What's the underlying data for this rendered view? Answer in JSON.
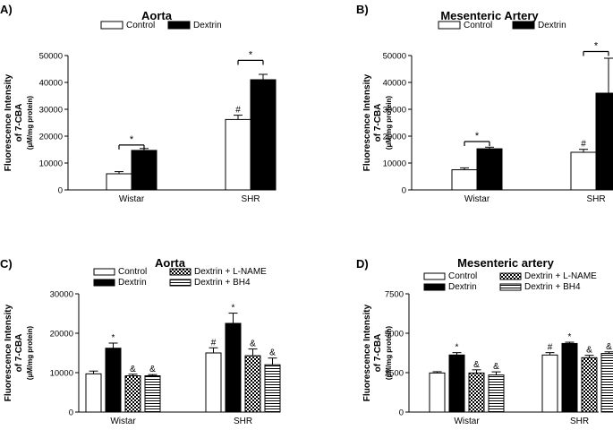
{
  "chart_data": [
    {
      "panel": "A)",
      "type": "bar",
      "title": "Aorta",
      "ylabel": [
        "Fluorescence Intensity",
        "of 7-CBA",
        "(µM/mg protein)"
      ],
      "categories": [
        "Wistar",
        "SHR"
      ],
      "ylim": [
        0,
        50000
      ],
      "yticks": [
        0,
        10000,
        20000,
        30000,
        40000,
        50000
      ],
      "series": [
        {
          "name": "Control",
          "fill": "white",
          "values": [
            6000,
            26200
          ],
          "errors": [
            800,
            1600
          ],
          "labels": [
            "",
            "#"
          ]
        },
        {
          "name": "Dextrin",
          "fill": "black",
          "values": [
            14700,
            41000
          ],
          "errors": [
            700,
            2000
          ],
          "labels": [
            "",
            ""
          ]
        }
      ],
      "brackets": [
        {
          "category": 0,
          "y": 16700,
          "label": "*"
        },
        {
          "category": 1,
          "y": 48200,
          "label": "*"
        }
      ]
    },
    {
      "panel": "B)",
      "type": "bar",
      "title": "Mesenteric Artery",
      "ylabel": [
        "Fluorescence Intensity",
        "of 7-CBA",
        "(µM/mg protein)"
      ],
      "categories": [
        "Wistar",
        "SHR"
      ],
      "ylim": [
        0,
        50000
      ],
      "yticks": [
        0,
        10000,
        20000,
        30000,
        40000,
        50000
      ],
      "series": [
        {
          "name": "Control",
          "fill": "white",
          "values": [
            7500,
            14000
          ],
          "errors": [
            700,
            1100
          ],
          "labels": [
            "",
            "#"
          ]
        },
        {
          "name": "Dextrin",
          "fill": "black",
          "values": [
            15300,
            36000
          ],
          "errors": [
            600,
            13000
          ],
          "labels": [
            "",
            ""
          ]
        }
      ],
      "brackets": [
        {
          "category": 0,
          "y": 18000,
          "label": "*"
        },
        {
          "category": 1,
          "y": 51500,
          "label": "*"
        }
      ]
    },
    {
      "panel": "C)",
      "type": "bar",
      "title": "Aorta",
      "ylabel": [
        "Fluorescence Intensity",
        "of 7-CBA",
        "(µM/mg protein)"
      ],
      "categories": [
        "Wistar",
        "SHR"
      ],
      "ylim": [
        0,
        30000
      ],
      "yticks": [
        0,
        10000,
        20000,
        30000
      ],
      "series": [
        {
          "name": "Control",
          "fill": "white",
          "values": [
            9700,
            15000
          ],
          "errors": [
            700,
            1300
          ],
          "labels": [
            "",
            "#"
          ]
        },
        {
          "name": "Dextrin",
          "fill": "black",
          "values": [
            16200,
            22500
          ],
          "errors": [
            1300,
            2600
          ],
          "labels": [
            "*",
            "*"
          ]
        },
        {
          "name": "Dextrin + L-NAME",
          "fill": "check",
          "values": [
            9200,
            14300
          ],
          "errors": [
            400,
            1700
          ],
          "labels": [
            "&",
            "&"
          ]
        },
        {
          "name": "Dextrin + BH4",
          "fill": "hlines",
          "values": [
            9200,
            12000
          ],
          "errors": [
            300,
            1700
          ],
          "labels": [
            "&",
            "&"
          ]
        }
      ]
    },
    {
      "panel": "D)",
      "type": "bar",
      "title": "Mesenteric artery",
      "ylabel": [
        "Fluorescence Intensity",
        "of 7-CBA",
        "(µM/mg protein)"
      ],
      "categories": [
        "Wistar",
        "SHR"
      ],
      "ylim": [
        0,
        7500
      ],
      "yticks": [
        0,
        2500,
        5000,
        7500
      ],
      "series": [
        {
          "name": "Control",
          "fill": "white",
          "values": [
            2480,
            3620
          ],
          "errors": [
            80,
            150
          ],
          "labels": [
            "",
            "#"
          ]
        },
        {
          "name": "Dextrin",
          "fill": "black",
          "values": [
            3620,
            4350
          ],
          "errors": [
            150,
            80
          ],
          "labels": [
            "*",
            "*"
          ]
        },
        {
          "name": "Dextrin + L-NAME",
          "fill": "check",
          "values": [
            2480,
            3450
          ],
          "errors": [
            200,
            150
          ],
          "labels": [
            "&",
            "&"
          ]
        },
        {
          "name": "Dextrin + BH4",
          "fill": "hlines",
          "values": [
            2350,
            3720
          ],
          "errors": [
            200,
            100
          ],
          "labels": [
            "&",
            "&"
          ]
        }
      ]
    }
  ]
}
